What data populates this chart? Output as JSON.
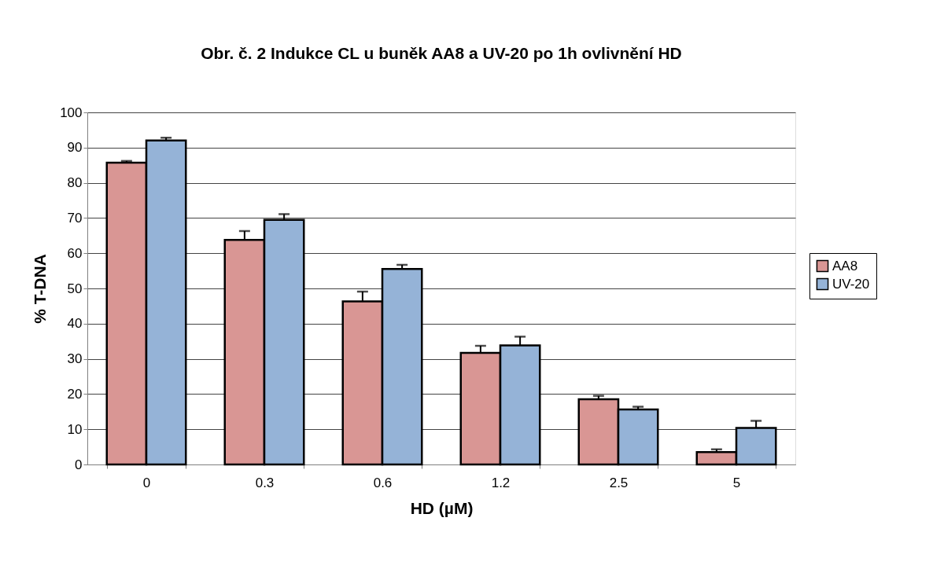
{
  "chart_data": {
    "type": "bar",
    "title": "Obr. č. 2  Indukce CL u buněk AA8 a UV-20 po 1h ovlivnění HD",
    "xlabel": "HD (µM)",
    "ylabel": "% T-DNA",
    "categories": [
      "0",
      "0.3",
      "0.6",
      "1.2",
      "2.5",
      "5"
    ],
    "series": [
      {
        "name": "AA8",
        "color": "#d99694",
        "values": [
          85.7,
          63.8,
          46.3,
          31.7,
          18.5,
          3.5
        ],
        "errors": [
          [
            85.7,
            86.2
          ],
          [
            63.8,
            66.3
          ],
          [
            46.3,
            49.1
          ],
          [
            31.7,
            33.7
          ],
          [
            18.5,
            19.5
          ],
          [
            3.5,
            4.3
          ]
        ]
      },
      {
        "name": "UV-20",
        "color": "#95b3d7",
        "values": [
          92.0,
          69.5,
          55.5,
          33.8,
          15.6,
          10.4
        ],
        "errors": [
          [
            92.0,
            92.8
          ],
          [
            69.5,
            71.1
          ],
          [
            55.5,
            56.7
          ],
          [
            33.8,
            36.3
          ],
          [
            15.6,
            16.4
          ],
          [
            10.4,
            12.4
          ]
        ]
      }
    ],
    "ylim": [
      0,
      100
    ],
    "yticks": [
      0,
      10,
      20,
      30,
      40,
      50,
      60,
      70,
      80,
      90,
      100
    ],
    "grid": "y",
    "legend": "right"
  }
}
